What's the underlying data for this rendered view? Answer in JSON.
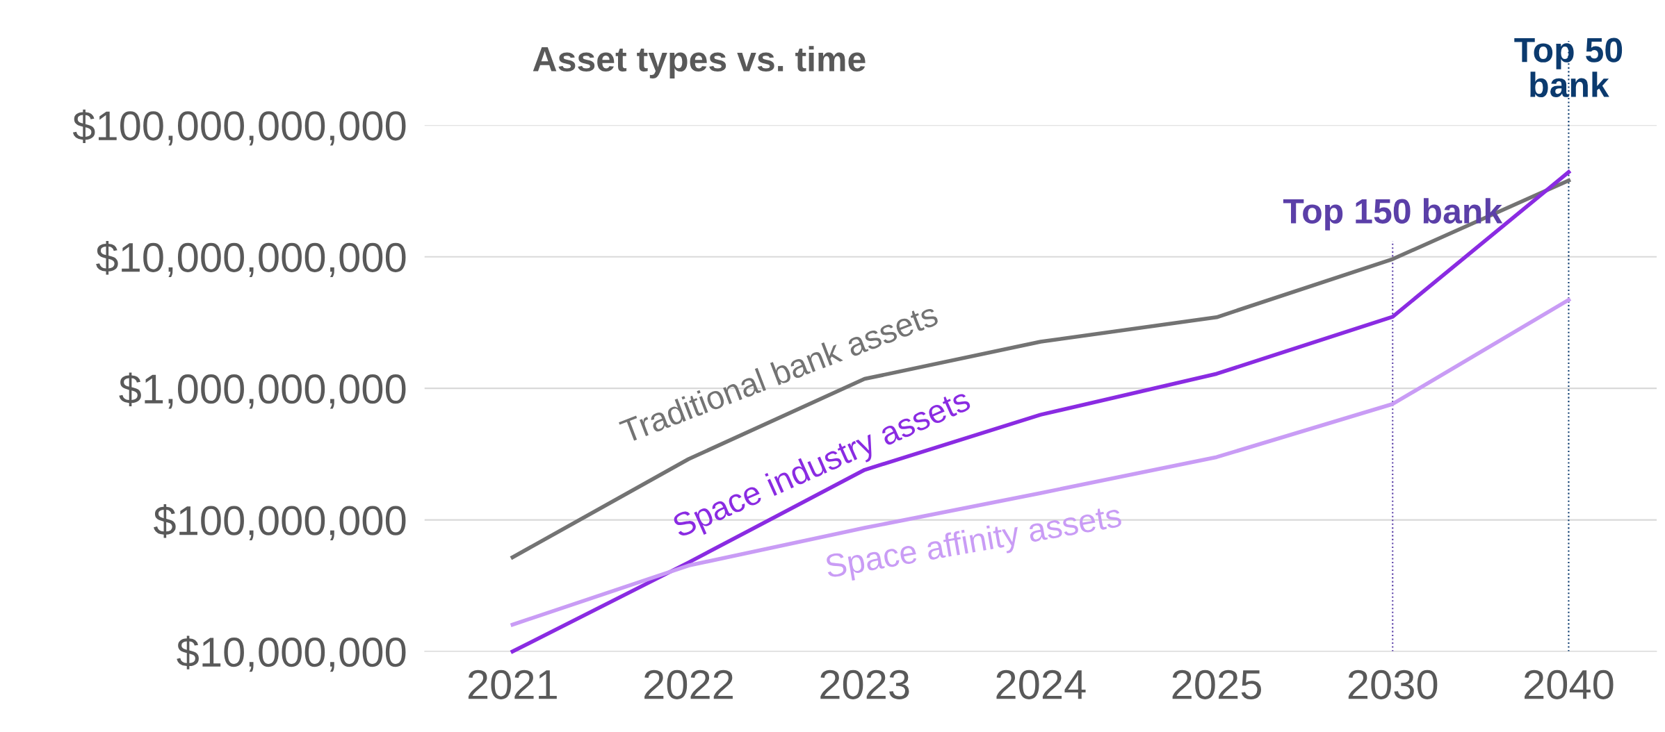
{
  "chart_data": {
    "type": "line",
    "title": "Asset types vs. time",
    "categories": [
      "2021",
      "2022",
      "2023",
      "2024",
      "2025",
      "2030",
      "2040"
    ],
    "series": [
      {
        "name": "Traditional bank assets",
        "color": "#737373",
        "values": [
          52000000,
          290000000,
          1180000000,
          2260000000,
          3470000000,
          9600000000,
          38000000000
        ]
      },
      {
        "name": "Space industry assets",
        "color": "#8a2be2",
        "values": [
          10000000,
          47500000,
          240000000,
          630000000,
          1290000000,
          3500000000,
          44000000000
        ]
      },
      {
        "name": "Space affinity assets",
        "color": "#c99cf5",
        "values": [
          16000000,
          45000000,
          87000000,
          160000000,
          300000000,
          760000000,
          4700000000
        ]
      }
    ],
    "log": true,
    "ylim": [
      10000000,
      100000000000
    ],
    "yticks": [
      {
        "value": 10000000,
        "label": "$10,000,000"
      },
      {
        "value": 100000000,
        "label": "$100,000,000"
      },
      {
        "value": 1000000000,
        "label": "$1,000,000,000"
      },
      {
        "value": 10000000000,
        "label": "$10,000,000,000"
      },
      {
        "value": 100000000000,
        "label": "$100,000,000,000"
      }
    ],
    "grid": "y",
    "legend": false,
    "marker": "none",
    "line_style": "solid",
    "ref_lines": [
      {
        "axis": "x",
        "value": "2030",
        "label": "Top 150 bank",
        "color": "#5b3fa8",
        "line_style": "dotted"
      },
      {
        "axis": "x",
        "value": "2040",
        "label": "Top 50 bank",
        "color": "#0b3a6e",
        "line_style": "dotted"
      }
    ]
  }
}
